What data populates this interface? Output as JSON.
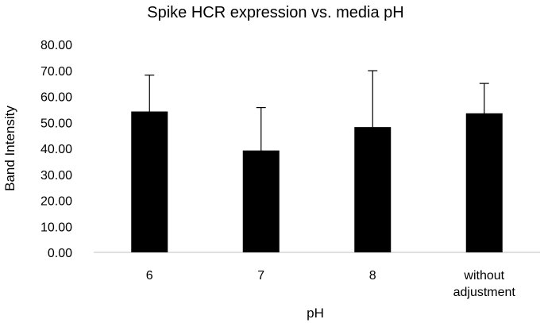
{
  "chart_data": {
    "type": "bar",
    "title": "Spike HCR expression vs. media pH",
    "xlabel": "pH",
    "ylabel": "Band Intensity",
    "categories": [
      "6",
      "7",
      "8",
      "without adjustment"
    ],
    "values": [
      54.2,
      39.2,
      48.2,
      53.5
    ],
    "errors": [
      14.0,
      16.5,
      21.7,
      11.5
    ],
    "ylim": [
      0,
      80
    ],
    "ytick_step": 10,
    "ytick_labels": [
      "0.00",
      "10.00",
      "20.00",
      "30.00",
      "40.00",
      "50.00",
      "60.00",
      "70.00",
      "80.00"
    ],
    "grid": false,
    "legend": "none",
    "bar_color": "#000000"
  }
}
